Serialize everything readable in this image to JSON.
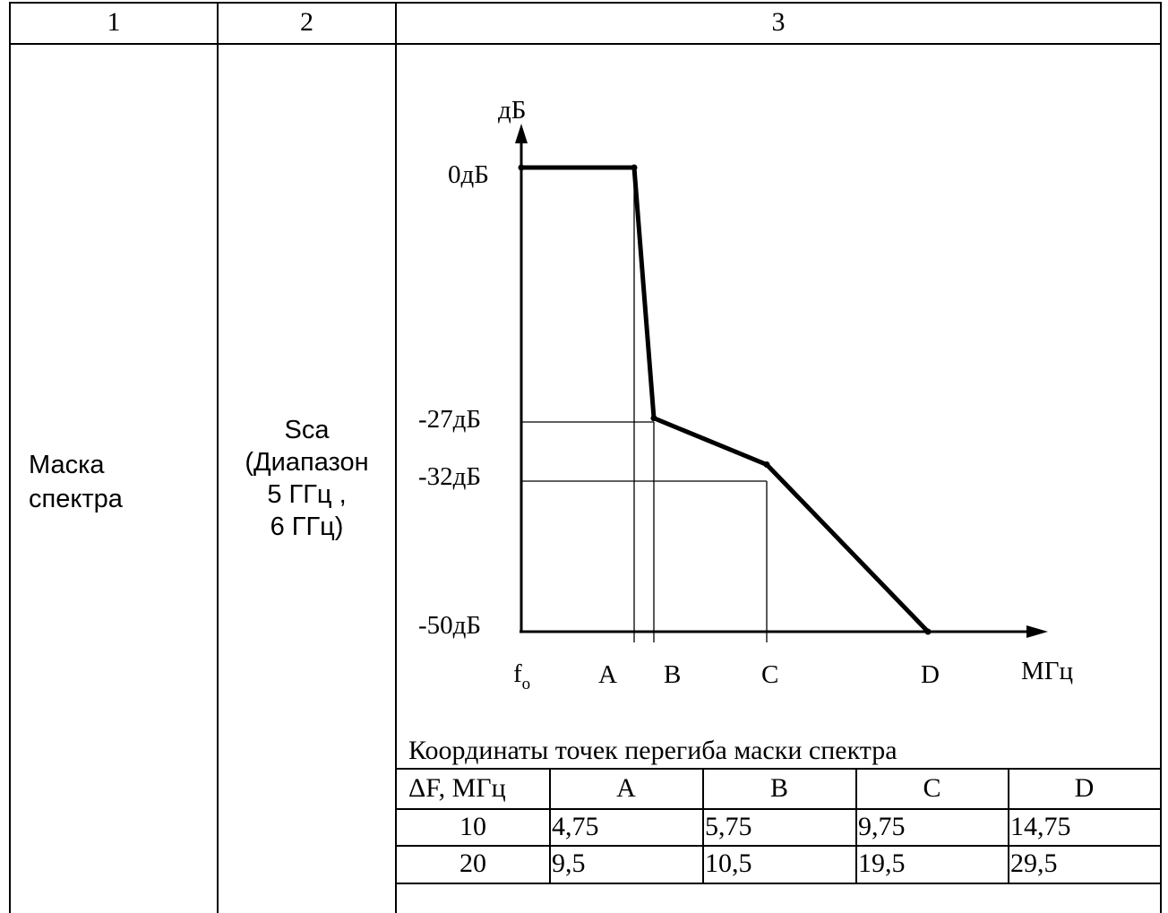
{
  "table": {
    "header": [
      "1",
      "2",
      "3"
    ],
    "row_col1": [
      "Маска",
      "спектра"
    ],
    "row_col2": [
      "Sca",
      "(Диапазон",
      "5 ГГц ,",
      "6 ГГц)"
    ]
  },
  "chart_data": {
    "type": "line",
    "y_axis_label": "дБ",
    "x_axis_label": "МГц",
    "y_tick_labels": [
      "0дБ",
      "-27дБ",
      "-32дБ",
      "-50дБ"
    ],
    "x_tick_labels": [
      "f",
      "A",
      "B",
      "C",
      "D"
    ],
    "x_origin_subscript": "o",
    "points": [
      {
        "x": "f0",
        "y": 0
      },
      {
        "x": "A",
        "y": 0
      },
      {
        "x": "B",
        "y": -27
      },
      {
        "x": "C",
        "y": -32
      },
      {
        "x": "D",
        "y": -50
      }
    ],
    "ylim": [
      -50,
      0
    ]
  },
  "coords": {
    "title": "Координаты точек перегиба маски спектра",
    "headers": [
      "ΔF, МГц",
      "A",
      "B",
      "C",
      "D"
    ],
    "rows": [
      [
        "10",
        "4,75",
        "5,75",
        "9,75",
        "14,75"
      ],
      [
        "20",
        "9,5",
        "10,5",
        "19,5",
        "29,5"
      ]
    ]
  }
}
